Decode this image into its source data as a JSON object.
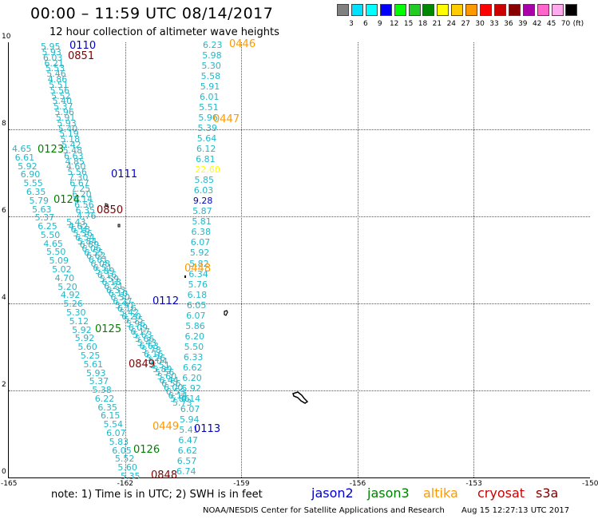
{
  "title": "00:00 – 11:59 UTC 08/14/2017",
  "subtitle": "12 hour collection of altimeter wave heights",
  "colorbar": {
    "unit": "(ft)",
    "labels": [
      "3",
      "6",
      "9",
      "12",
      "15",
      "18",
      "21",
      "24",
      "27",
      "30",
      "33",
      "36",
      "39",
      "42",
      "45",
      "70"
    ],
    "colors": [
      "#808080",
      "#00e0ff",
      "#00ffff",
      "#0000ff",
      "#00ff00",
      "#22cc22",
      "#008800",
      "#ffff00",
      "#ffcc00",
      "#ff9900",
      "#ff0000",
      "#cc0000",
      "#880000",
      "#aa00aa",
      "#ff66cc",
      "#ffaaee",
      "#000000"
    ]
  },
  "axes": {
    "x_ticks": [
      "-165",
      "-162",
      "-159",
      "-156",
      "-153",
      "-150"
    ],
    "y_ticks": [
      "10",
      "8",
      "6",
      "4",
      "2",
      "0"
    ]
  },
  "colors": {
    "wave": "#22b8c8",
    "jason2": "#0000cc",
    "jason3": "#008000",
    "altika": "#ff9900",
    "cryosat": "#cc0000",
    "s3a": "#800000",
    "high_value": "#ffff00"
  },
  "wave_heights": {
    "track_a": [
      "5.95",
      "5.93",
      "6.03",
      "6.21",
      "5.53",
      "5.46",
      "4.86",
      "5.51",
      "5.56",
      "5.52",
      "5.40",
      "5.37",
      "5.96",
      "5.91",
      "5.93",
      "5.40",
      "5.19",
      "5.18",
      "5.42",
      "5.48",
      "6.63",
      "4.85",
      "4.60",
      "5.56",
      "7.30",
      "6.67",
      "7.25",
      "6.20",
      "6.14",
      "6.56",
      "6.35",
      "4.76"
    ],
    "track_a_left": [
      "4.65",
      "6.61",
      "5.92",
      "6.90",
      "5.55",
      "6.35",
      "5.79",
      "5.63",
      "5.37",
      "6.25",
      "5.50",
      "4.65",
      "5.50",
      "5.09",
      "5.02",
      "4.70",
      "5.20",
      "4.92",
      "5.26",
      "5.30",
      "5.12",
      "5.92",
      "5.92",
      "5.60",
      "5.25",
      "5.61",
      "5.93",
      "5.37",
      "5.38",
      "6.22",
      "6.35",
      "6.15",
      "5.54",
      "6.07",
      "5.83",
      "6.05",
      "5.52",
      "5.60",
      "5.35"
    ],
    "track_b": [
      "5.43",
      "4.62",
      "6.18",
      "5.36",
      "6.54",
      "5.84",
      "6.89",
      "6.06",
      "6.55",
      "6.62",
      "6.61",
      "6.08",
      "6.51",
      "5.89",
      "6.16",
      "5.59",
      "6.18",
      "6.21",
      "6.33",
      "6.10",
      "6.30",
      "6.27",
      "5.97",
      "6.16",
      "5.42",
      "6.20",
      "5.35",
      "5.96",
      "6.09",
      "6.17",
      "5.63",
      "5.66",
      "5.43",
      "6.63",
      "5.78",
      "6.16",
      "5.26",
      "5.04",
      "5.51",
      "5.89",
      "5.56",
      "5.60",
      "6.44",
      "6.56",
      "6.00",
      "6.59",
      "6.14",
      "5.86",
      "5.73"
    ],
    "track_c": [
      "6.23",
      "5.98",
      "5.30",
      "5.58",
      "5.91",
      "6.01",
      "5.51",
      "5.96",
      "5.39",
      "5.64",
      "6.12",
      "6.81",
      "22.60",
      "5.85",
      "6.03",
      "9.28",
      "5.87",
      "5.81",
      "6.38",
      "6.07",
      "5.92",
      "5.82",
      "6.34",
      "5.76",
      "6.18",
      "6.05",
      "6.07",
      "5.86",
      "6.20",
      "5.50",
      "6.33",
      "6.62",
      "6.20",
      "5.92",
      "6.14",
      "6.07",
      "5.94",
      "5.41",
      "6.47",
      "6.62",
      "6.57",
      "6.74"
    ]
  },
  "passes": [
    {
      "label": "0110",
      "sat": "jason2"
    },
    {
      "label": "0851",
      "sat": "s3a"
    },
    {
      "label": "0446",
      "sat": "altika"
    },
    {
      "label": "0447",
      "sat": "altika"
    },
    {
      "label": "0123",
      "sat": "jason3"
    },
    {
      "label": "0111",
      "sat": "jason2"
    },
    {
      "label": "0124",
      "sat": "jason3"
    },
    {
      "label": "0850",
      "sat": "s3a"
    },
    {
      "label": "0448",
      "sat": "altika"
    },
    {
      "label": "0112",
      "sat": "jason2"
    },
    {
      "label": "0125",
      "sat": "jason3"
    },
    {
      "label": "0849",
      "sat": "s3a"
    },
    {
      "label": "0449",
      "sat": "altika"
    },
    {
      "label": "0113",
      "sat": "jason2"
    },
    {
      "label": "0126",
      "sat": "jason3"
    },
    {
      "label": "0848",
      "sat": "s3a"
    }
  ],
  "note": "note:  1) Time is in UTC;  2) SWH is in feet",
  "legend": {
    "jason2": "jason2",
    "jason3": "jason3",
    "altika": "altika",
    "cryosat": "cryosat",
    "s3a": "s3a"
  },
  "credit": "NOAA/NESDIS Center for Satellite Applications and Research",
  "stamp": "Aug 15 12:27:13 UTC 2017"
}
